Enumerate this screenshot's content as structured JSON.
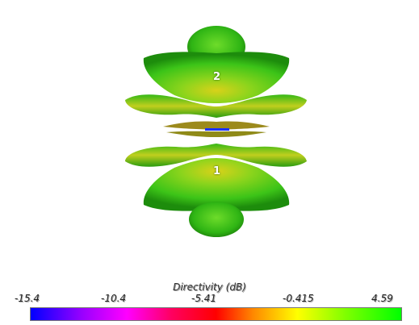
{
  "viewport": {
    "lobe_labels": [
      "2",
      "1"
    ]
  },
  "legend": {
    "title": "Directivity (dB)",
    "ticks": [
      "-15.4",
      "-10.4",
      "-5.41",
      "-0.415",
      "4.59"
    ],
    "min": -15.4,
    "max": 4.59,
    "colormap": [
      "#0000ff",
      "#9a00ff",
      "#ff00ff",
      "#ff0060",
      "#ff0000",
      "#ff8800",
      "#ffff00",
      "#7fff00",
      "#00ff00"
    ]
  },
  "colors": {
    "lobe_main": "#39c41c",
    "lobe_dark": "#1a7a08",
    "lobe_hot": "#e0d21a",
    "null_blue": "#1a30ff"
  }
}
